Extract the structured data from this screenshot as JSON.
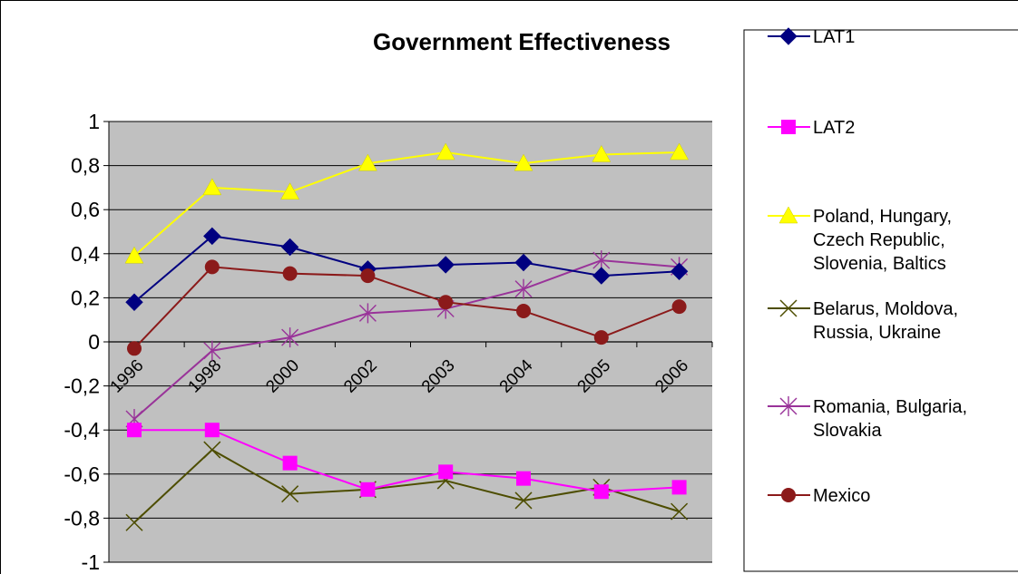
{
  "chart_data": {
    "type": "line",
    "title": "Government Effectiveness",
    "categories": [
      "1996",
      "1998",
      "2000",
      "2002",
      "2003",
      "2004",
      "2005",
      "2006"
    ],
    "ylim": [
      -1,
      1
    ],
    "yticks": [
      "1",
      "0,8",
      "0,6",
      "0,4",
      "0,2",
      "0",
      "-0,2",
      "-0,4",
      "-0,6",
      "-0,8",
      "-1"
    ],
    "grid": true,
    "legend_position": "right",
    "series": [
      {
        "name": "LAT1",
        "values": [
          0.18,
          0.48,
          0.43,
          0.33,
          0.35,
          0.36,
          0.3,
          0.32
        ],
        "color": "#000080",
        "marker": "diamond"
      },
      {
        "name": "LAT2",
        "values": [
          -0.4,
          -0.4,
          -0.55,
          -0.67,
          -0.59,
          -0.62,
          -0.68,
          -0.66
        ],
        "color": "#FF00FF",
        "marker": "square"
      },
      {
        "name": "Poland, Hungary, Czech Republic, Slovenia, Baltics",
        "legend_lines": [
          "Poland, Hungary,",
          "Czech Republic,",
          "Slovenia, Baltics"
        ],
        "values": [
          0.39,
          0.7,
          0.68,
          0.81,
          0.86,
          0.81,
          0.85,
          0.86
        ],
        "color": "#FFFF00",
        "marker": "triangle"
      },
      {
        "name": "Belarus, Moldova, Russia, Ukraine",
        "legend_lines": [
          "Belarus, Moldova,",
          "Russia, Ukraine"
        ],
        "values": [
          -0.82,
          -0.49,
          -0.69,
          -0.67,
          -0.63,
          -0.72,
          -0.66,
          -0.77
        ],
        "color": "#4D4D00",
        "marker": "x"
      },
      {
        "name": "Romania, Bulgaria, Slovakia",
        "legend_lines": [
          "Romania, Bulgaria,",
          "Slovakia"
        ],
        "values": [
          -0.35,
          -0.04,
          0.02,
          0.13,
          0.15,
          0.24,
          0.37,
          0.34
        ],
        "color": "#993399",
        "marker": "star"
      },
      {
        "name": "Mexico",
        "values": [
          -0.03,
          0.34,
          0.31,
          0.3,
          0.18,
          0.14,
          0.02,
          0.16
        ],
        "color": "#8B1A1A",
        "marker": "circle"
      }
    ]
  }
}
